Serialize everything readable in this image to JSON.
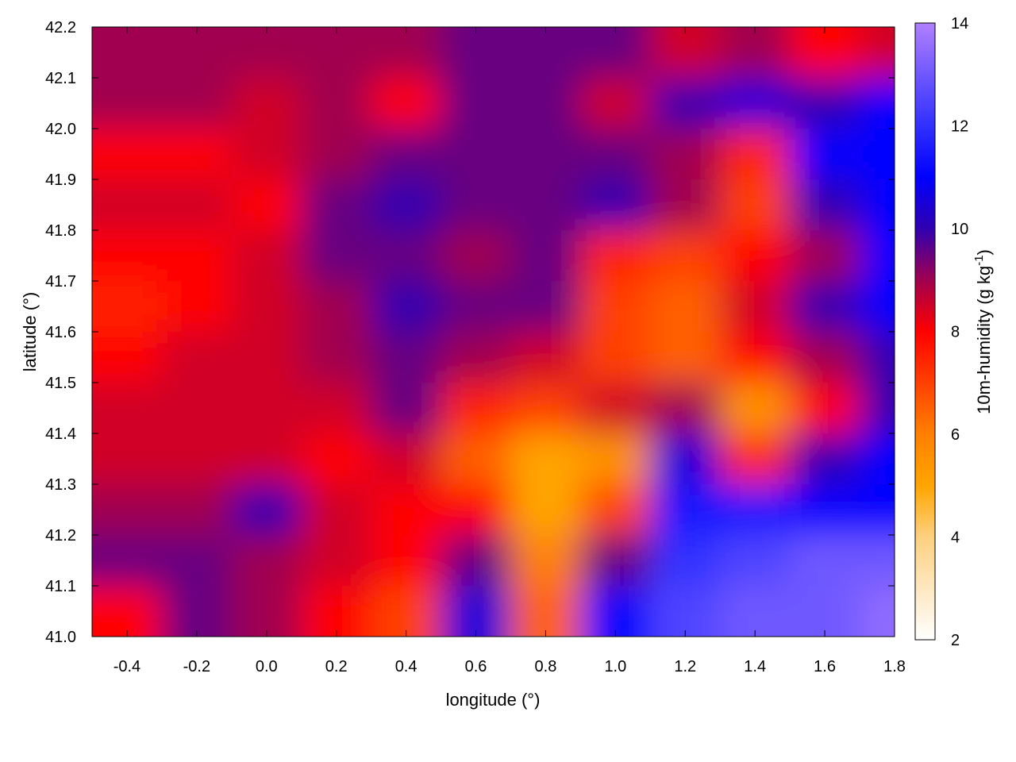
{
  "chart_data": {
    "type": "heatmap",
    "title": "",
    "xlabel": "longitude (°)",
    "ylabel": "latitude (°)",
    "colorbar_label": "10m-humidity (g kg",
    "colorbar_label_sup": "-1",
    "colorbar_label_end": ")",
    "xlim": [
      -0.5,
      1.8
    ],
    "ylim": [
      41.0,
      42.2
    ],
    "clim": [
      2,
      14
    ],
    "xticks": [
      "-0.4",
      "-0.2",
      "0.0",
      "0.2",
      "0.4",
      "0.6",
      "0.8",
      "1.0",
      "1.2",
      "1.4",
      "1.6",
      "1.8"
    ],
    "yticks": [
      "41.0",
      "41.1",
      "41.2",
      "41.3",
      "41.4",
      "41.5",
      "41.6",
      "41.7",
      "41.8",
      "41.9",
      "42.0",
      "42.1",
      "42.2"
    ],
    "cticks": [
      "2",
      "4",
      "6",
      "8",
      "10",
      "12",
      "14"
    ],
    "grid": false,
    "palette": [
      {
        "v": 2,
        "color": "#ffffff"
      },
      {
        "v": 4,
        "color": "#fdd080"
      },
      {
        "v": 5,
        "color": "#ffa500"
      },
      {
        "v": 6,
        "color": "#ff8000"
      },
      {
        "v": 7,
        "color": "#ff4000"
      },
      {
        "v": 8,
        "color": "#ff0000"
      },
      {
        "v": 9,
        "color": "#a00050"
      },
      {
        "v": 10,
        "color": "#3000b0"
      },
      {
        "v": 11,
        "color": "#0000ff"
      },
      {
        "v": 12,
        "color": "#3030ff"
      },
      {
        "v": 14,
        "color": "#b080ff"
      }
    ],
    "lon": [
      -0.4,
      -0.2,
      0.0,
      0.2,
      0.4,
      0.6,
      0.8,
      1.0,
      1.2,
      1.4,
      1.6,
      1.8
    ],
    "lat": [
      42.15,
      42.05,
      41.95,
      41.85,
      41.75,
      41.65,
      41.55,
      41.45,
      41.35,
      41.25,
      41.15,
      41.05
    ],
    "values": [
      [
        9,
        9,
        9,
        9,
        9,
        9.5,
        9.5,
        9.5,
        8.5,
        9,
        8,
        8.5
      ],
      [
        9,
        9,
        8.5,
        9,
        8,
        9.5,
        9.5,
        8.5,
        10,
        10.5,
        10,
        11
      ],
      [
        8,
        8,
        8.5,
        9,
        9.5,
        9.5,
        9.5,
        9.5,
        9,
        7.5,
        11,
        11
      ],
      [
        8.5,
        8.5,
        8,
        9.5,
        10,
        9.5,
        9.5,
        10,
        9,
        7,
        10,
        11
      ],
      [
        8,
        8,
        8.5,
        9.5,
        9.5,
        9,
        9.5,
        7.5,
        7,
        8,
        9,
        11
      ],
      [
        7.5,
        8,
        8.5,
        9,
        10,
        9.5,
        9.5,
        7,
        6.5,
        8.5,
        10,
        11
      ],
      [
        8,
        8.5,
        8.5,
        9,
        9.5,
        9,
        8.5,
        7,
        6.5,
        8,
        9,
        10
      ],
      [
        8.5,
        8.5,
        8.5,
        8.5,
        9.5,
        7.5,
        7,
        8.5,
        9,
        5.5,
        8,
        10
      ],
      [
        8.5,
        8.5,
        8.5,
        8,
        8.5,
        6.5,
        5,
        5.5,
        10.5,
        7.5,
        10,
        11
      ],
      [
        9,
        9,
        10,
        8.5,
        8,
        8,
        5,
        7,
        11.5,
        11.5,
        11,
        11
      ],
      [
        9.5,
        9.5,
        9,
        8.5,
        8,
        9.5,
        6,
        9.5,
        12,
        12.5,
        13,
        13
      ],
      [
        8,
        9.5,
        9,
        8,
        7,
        10.5,
        6.5,
        11,
        12.5,
        13,
        13,
        13.5
      ]
    ]
  }
}
